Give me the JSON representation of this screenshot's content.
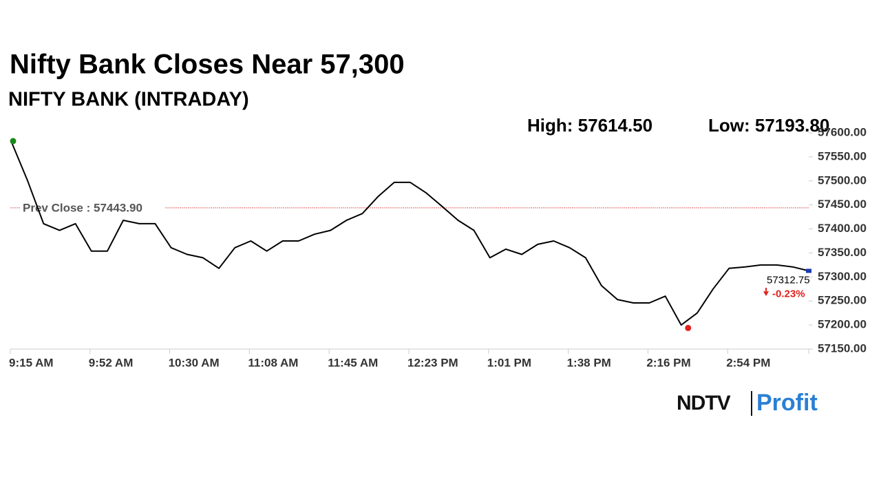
{
  "chart_data": {
    "type": "line",
    "title": "Nifty Bank Closes Near 57,300",
    "subtitle": "NIFTY BANK (INTRADAY)",
    "high": {
      "value": 57614.5,
      "label": "High: 57614.50"
    },
    "low": {
      "value": 57193.8,
      "label": "Low: 57193.80"
    },
    "prev_close": {
      "value": 57443.9,
      "label": "Prev Close : 57443.90"
    },
    "last": {
      "value": 57312.75,
      "label": "57312.75"
    },
    "change": {
      "value": -0.23,
      "label": "-0.23%"
    },
    "categories": [
      "9:15 AM",
      null,
      null,
      null,
      null,
      "9:52 AM",
      null,
      null,
      null,
      null,
      "10:30 AM",
      null,
      null,
      null,
      null,
      "11:08 AM",
      null,
      null,
      null,
      null,
      "11:45 AM",
      null,
      null,
      null,
      null,
      "12:23 PM",
      null,
      null,
      null,
      null,
      "1:01 PM",
      null,
      null,
      null,
      null,
      "1:38 PM",
      null,
      null,
      null,
      null,
      "2:16 PM",
      null,
      null,
      null,
      null,
      "2:54 PM",
      null,
      null,
      null,
      null,
      null
    ],
    "series": [
      {
        "name": "NIFTY BANK",
        "color": "#000000",
        "values": [
          57580,
          57500,
          57411,
          57397,
          57411,
          57354,
          57354,
          57418,
          57411,
          57411,
          57361,
          57347,
          57340,
          57318,
          57361,
          57375,
          57354,
          57375,
          57375,
          57389,
          57397,
          57418,
          57432,
          57468,
          57497,
          57497,
          57475,
          57447,
          57418,
          57397,
          57340,
          57358,
          57347,
          57368,
          57375,
          57361,
          57340,
          57282,
          57253,
          57246,
          57246,
          57260,
          57200,
          57225,
          57275,
          57318,
          57321,
          57325,
          57325,
          57321,
          57312.75
        ]
      }
    ],
    "ylim": [
      57150,
      57625
    ],
    "yticks": [
      {
        "value": 57150,
        "label": "57150.00"
      },
      {
        "value": 57200,
        "label": "57200.00"
      },
      {
        "value": 57250,
        "label": "57250.00"
      },
      {
        "value": 57300,
        "label": "57300.00"
      },
      {
        "value": 57350,
        "label": "57350.00"
      },
      {
        "value": 57400,
        "label": "57400.00"
      },
      {
        "value": 57450,
        "label": "57450.00"
      },
      {
        "value": 57500,
        "label": "57500.00"
      },
      {
        "value": 57550,
        "label": "57550.00"
      },
      {
        "value": 57600,
        "label": "57600.00"
      }
    ],
    "logo": {
      "left": "NDTV",
      "right": "Profit"
    }
  }
}
